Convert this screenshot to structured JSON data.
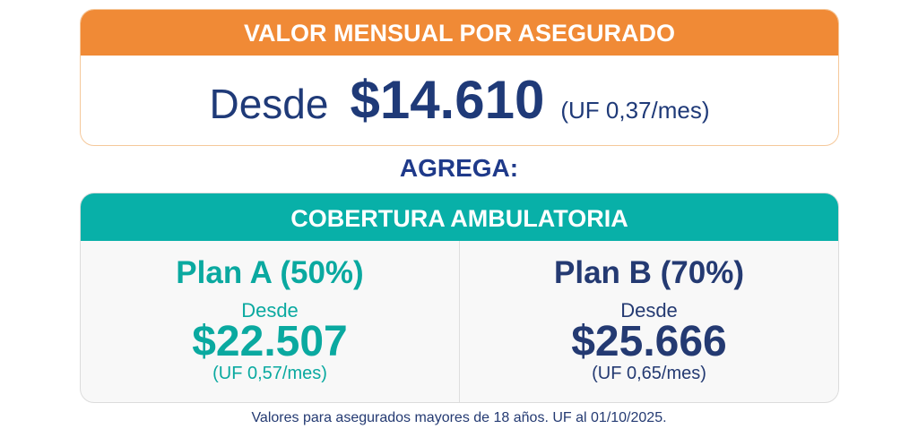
{
  "colors": {
    "orange": "#f08a36",
    "teal": "#08b0a8",
    "navy": "#1f3a78"
  },
  "monthly": {
    "header": "VALOR MENSUAL POR ASEGURADO",
    "desde": "Desde",
    "price": "$14.610",
    "uf": "(UF 0,37/mes)"
  },
  "agrega": "AGREGA:",
  "coverage": {
    "header": "COBERTURA AMBULATORIA",
    "plans": [
      {
        "title": "Plan A (50%)",
        "desde": "Desde",
        "price": "$22.507",
        "uf": "(UF 0,57/mes)"
      },
      {
        "title": "Plan B (70%)",
        "desde": "Desde",
        "price": "$25.666",
        "uf": "(UF 0,65/mes)"
      }
    ]
  },
  "footer": "Valores para asegurados mayores de 18 años. UF al 01/10/2025."
}
